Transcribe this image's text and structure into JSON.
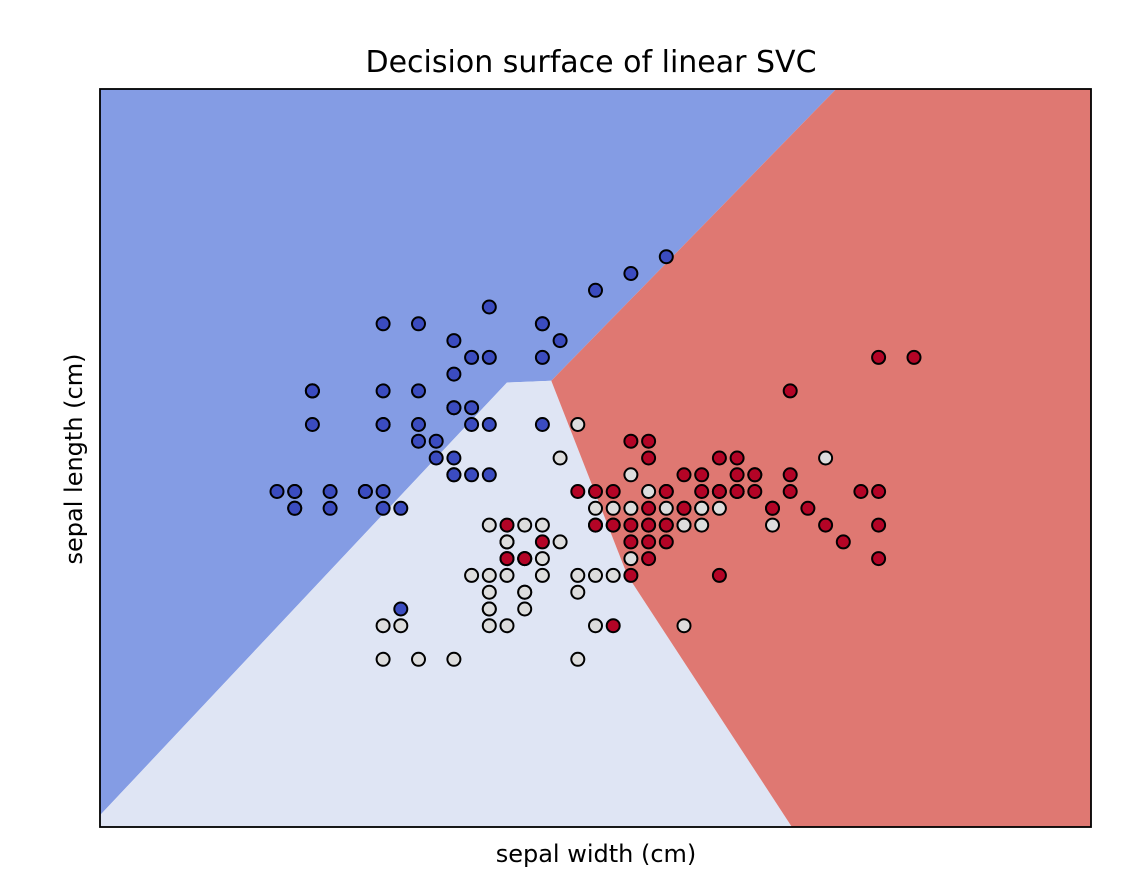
{
  "chart_data": {
    "type": "scatter",
    "title": "Decision surface of linear SVC",
    "xlabel": "sepal width (cm)",
    "ylabel": "sepal length (cm)",
    "xlim": [
      3.3,
      8.9
    ],
    "ylim": [
      1.0,
      5.4
    ],
    "xticks": [],
    "yticks": [],
    "grid": false,
    "legend": "none",
    "colors": {
      "region_class0": "#849ce4",
      "region_class1": "#dfe5f4",
      "region_class2": "#df7872",
      "point_class0": "#3b4cc0",
      "point_class1": "#dddddd",
      "point_class2": "#b40426",
      "point_edge": "#000000"
    },
    "regions": [
      {
        "class": 0,
        "polygon": [
          [
            3.3,
            5.4
          ],
          [
            7.46,
            5.4
          ],
          [
            5.85,
            3.66
          ],
          [
            5.6,
            3.65
          ],
          [
            3.3,
            1.07
          ]
        ]
      },
      {
        "class": 1,
        "polygon": [
          [
            3.3,
            1.07
          ],
          [
            5.6,
            3.65
          ],
          [
            5.85,
            3.66
          ],
          [
            6.28,
            2.5
          ],
          [
            7.21,
            1.0
          ],
          [
            3.3,
            1.0
          ]
        ]
      },
      {
        "class": 2,
        "polygon": [
          [
            7.46,
            5.4
          ],
          [
            8.9,
            5.4
          ],
          [
            8.9,
            1.0
          ],
          [
            7.21,
            1.0
          ],
          [
            6.28,
            2.5
          ],
          [
            5.85,
            3.66
          ]
        ]
      }
    ],
    "series": [
      {
        "class": 0,
        "x": [
          6.5,
          6.3,
          6.1,
          5.5,
          5.1,
          4.9,
          5.8,
          5.8,
          5.9,
          5.3,
          5.8,
          5.5,
          5.4,
          5.3,
          4.5,
          4.5,
          4.5,
          4.9,
          5.1,
          5.3,
          5.4,
          5.4,
          5.5,
          4.5,
          4.9,
          4.9,
          5.1,
          5.3,
          5.8,
          5.1,
          5.2,
          5.2,
          5.3,
          5.3,
          5.3,
          5.4,
          5.5,
          4.8,
          4.6,
          4.8,
          4.9,
          4.3,
          4.4,
          4.4,
          4.6,
          4.9,
          5.0,
          4.4,
          4.4,
          5.0
        ],
        "y": [
          4.4,
          4.3,
          4.2,
          4.1,
          4.0,
          4.0,
          4.0,
          4.0,
          3.9,
          3.9,
          3.8,
          3.8,
          3.8,
          3.7,
          3.6,
          3.6,
          3.6,
          3.6,
          3.6,
          3.5,
          3.5,
          3.4,
          3.4,
          3.4,
          3.4,
          3.4,
          3.4,
          3.5,
          3.4,
          3.3,
          3.3,
          3.2,
          3.2,
          3.1,
          3.1,
          3.1,
          3.1,
          3.0,
          3.0,
          3.0,
          3.0,
          3.0,
          3.0,
          2.9,
          2.9,
          2.9,
          2.9,
          3.0,
          2.9,
          2.3
        ]
      },
      {
        "class": 1,
        "x": [
          6.0,
          5.9,
          6.3,
          6.4,
          6.5,
          6.5,
          6.6,
          6.8,
          6.7,
          6.9,
          7.0,
          6.8,
          5.9,
          6.6,
          6.6,
          6.4,
          6.3,
          6.1,
          6.2,
          6.7,
          6.2,
          6.1,
          5.5,
          5.8,
          5.7,
          5.6,
          6.3,
          5.8,
          7.4,
          7.1,
          6.7,
          7.1,
          5.6,
          5.7,
          5.6,
          5.7,
          5.8,
          5.4,
          6.2,
          5.5,
          5.6,
          6.0,
          6.1,
          5.7,
          5.7,
          6.0,
          5.5,
          5.5,
          5.5,
          5.7,
          5.5,
          4.9,
          5.0,
          5.6,
          6.1,
          6.0,
          4.9,
          5.1,
          5.3,
          6.6
        ],
        "y": [
          3.4,
          3.2,
          3.1,
          3.0,
          3.0,
          2.9,
          2.9,
          2.9,
          2.8,
          3.0,
          3.1,
          3.0,
          2.7,
          2.8,
          2.8,
          2.8,
          2.9,
          2.9,
          2.9,
          2.9,
          2.8,
          2.8,
          2.8,
          2.8,
          2.8,
          2.7,
          2.6,
          2.6,
          3.2,
          2.9,
          2.9,
          2.8,
          2.7,
          2.6,
          2.6,
          2.6,
          2.5,
          2.5,
          2.5,
          2.5,
          2.5,
          2.5,
          2.5,
          2.4,
          2.4,
          2.4,
          2.4,
          2.3,
          2.3,
          2.3,
          2.2,
          2.2,
          2.2,
          2.2,
          2.2,
          2.0,
          2.0,
          2.0,
          2.0,
          2.2
        ]
      },
      {
        "class": 2,
        "x": [
          7.7,
          7.9,
          7.2,
          6.3,
          6.4,
          6.4,
          6.9,
          6.6,
          6.7,
          6.8,
          6.8,
          6.9,
          6.9,
          7.0,
          7.2,
          6.5,
          6.7,
          6.9,
          7.0,
          7.1,
          7.2,
          7.3,
          7.6,
          7.7,
          7.4,
          7.5,
          7.7,
          6.0,
          6.1,
          6.2,
          6.4,
          6.3,
          6.4,
          6.5,
          6.5,
          6.3,
          6.4,
          6.5,
          6.2,
          6.4,
          6.3,
          6.6,
          5.6,
          5.6,
          5.7,
          5.8,
          6.2,
          7.7,
          6.1,
          6.8
        ],
        "y": [
          3.8,
          3.8,
          3.6,
          3.3,
          3.3,
          3.2,
          3.2,
          3.1,
          3.1,
          3.2,
          3.0,
          3.0,
          3.1,
          3.1,
          3.1,
          3.0,
          3.0,
          3.0,
          3.0,
          2.9,
          3.0,
          2.9,
          3.0,
          3.0,
          2.8,
          2.7,
          2.6,
          3.0,
          3.0,
          3.0,
          2.9,
          2.8,
          2.8,
          2.7,
          2.8,
          2.7,
          2.7,
          2.8,
          2.8,
          2.6,
          2.5,
          2.9,
          2.8,
          2.6,
          2.6,
          2.7,
          2.2,
          2.8,
          2.8,
          2.5
        ]
      }
    ]
  }
}
